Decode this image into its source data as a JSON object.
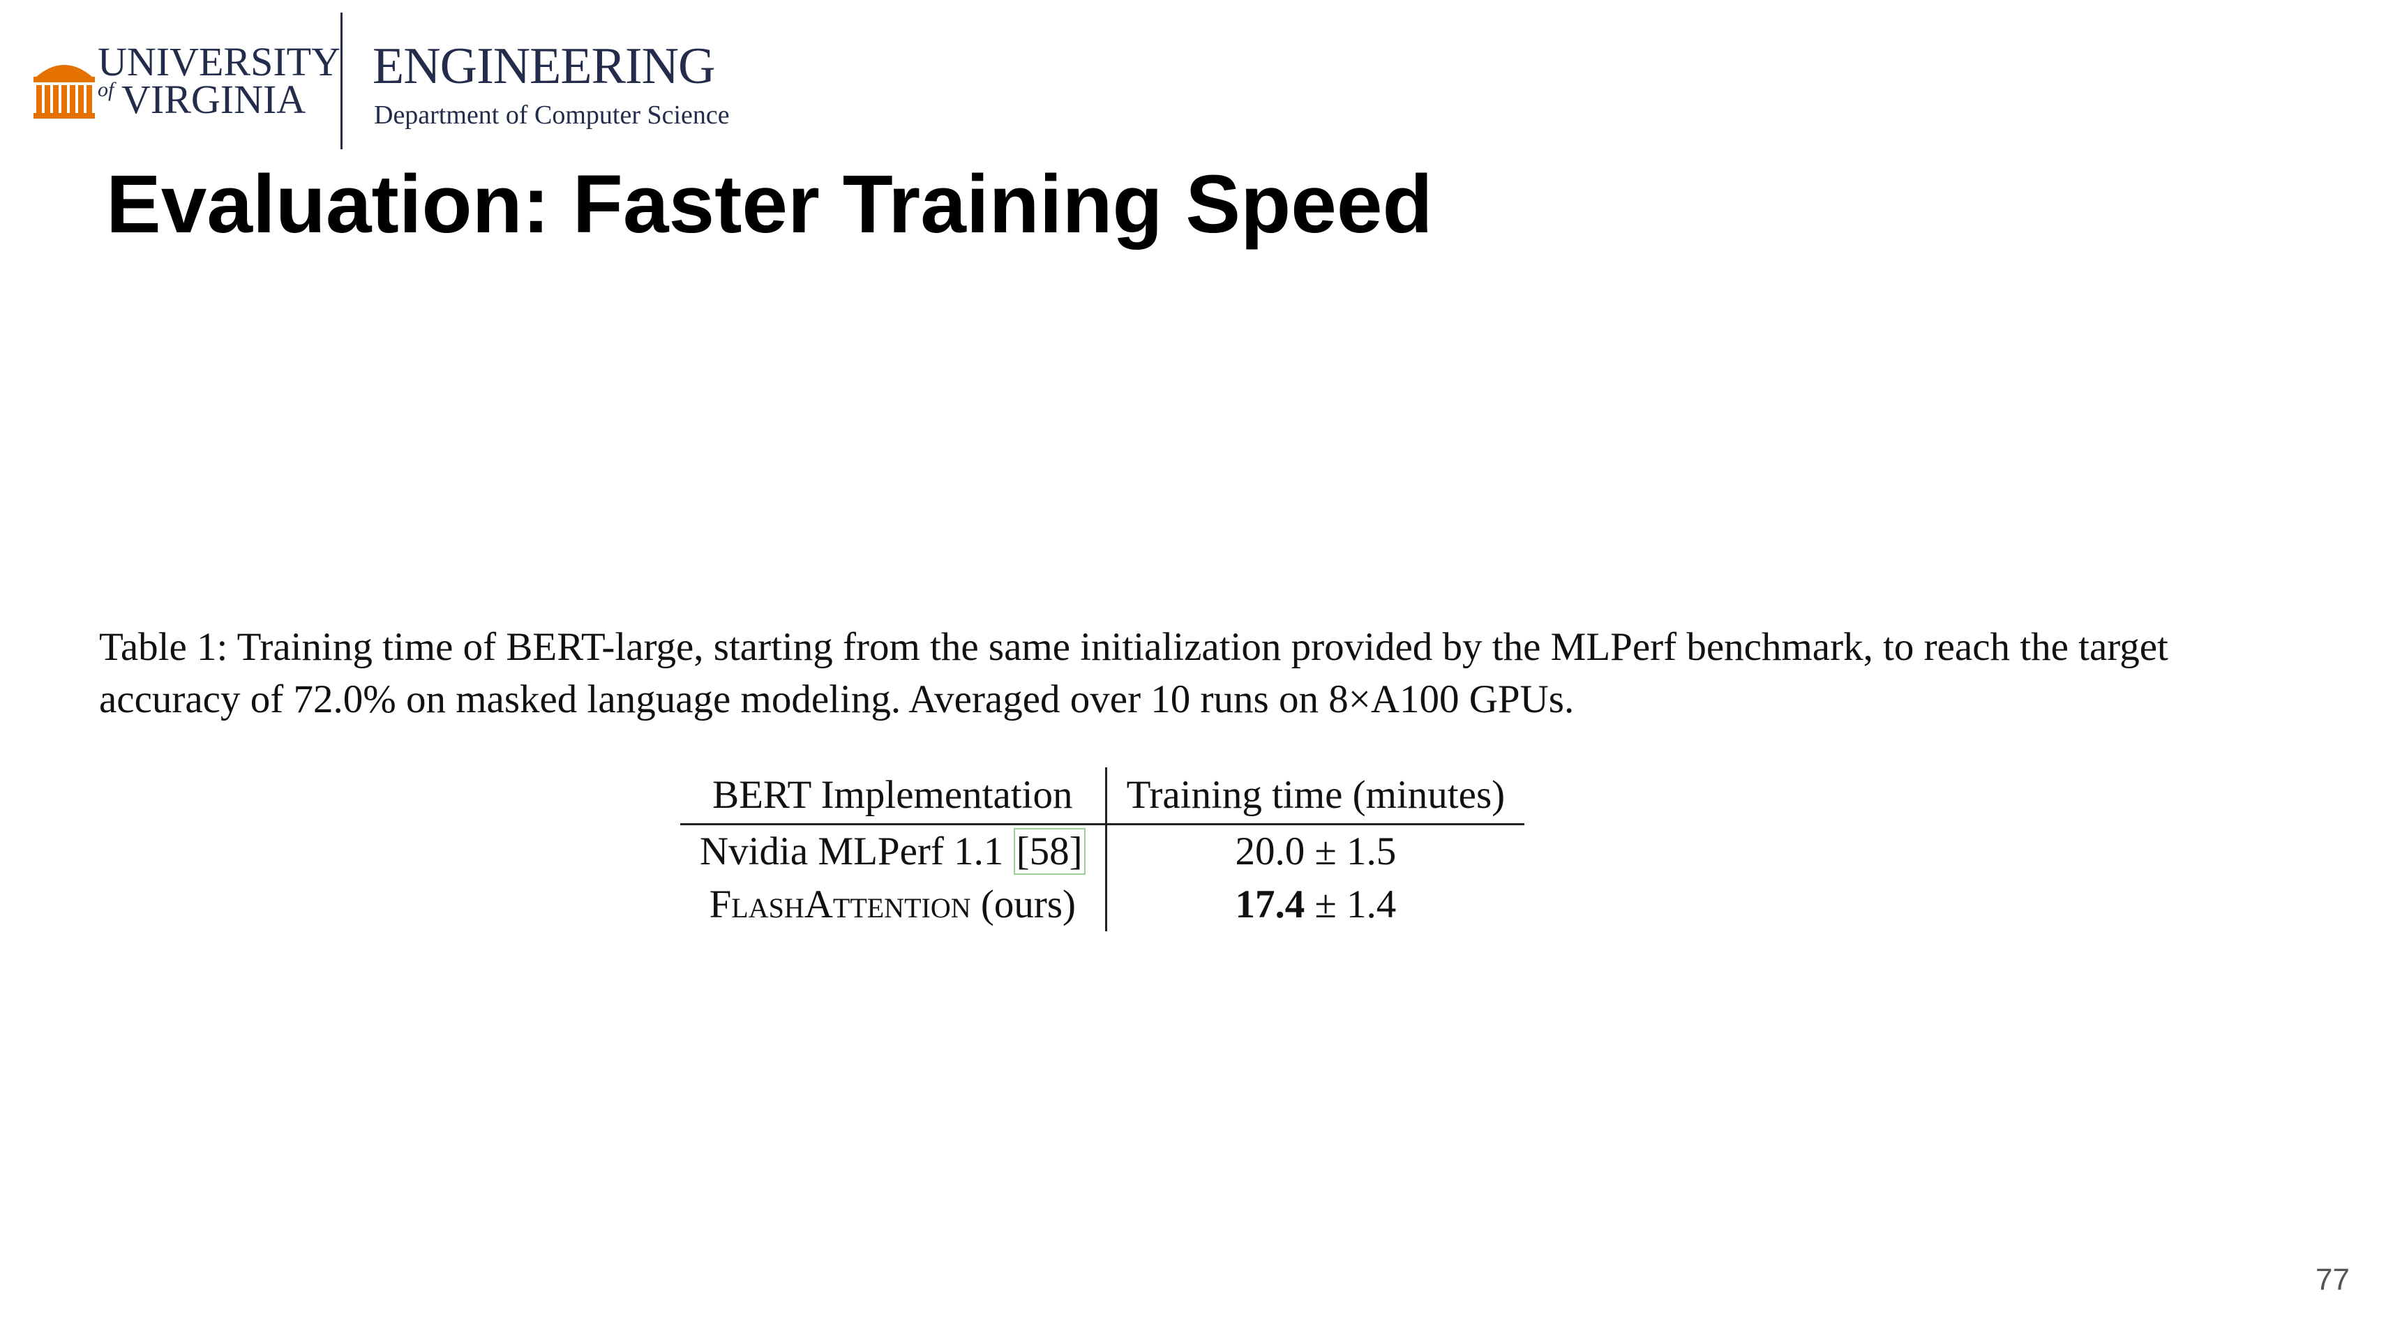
{
  "header": {
    "university_line1": "UNIVERSITY",
    "university_of": "of",
    "university_line2": "VIRGINIA",
    "school": "ENGINEERING",
    "department": "Department of Computer Science",
    "logo_color": "#e57200",
    "brand_color": "#232d4b"
  },
  "slide": {
    "title": "Evaluation: Faster Training Speed",
    "page_number": "77"
  },
  "table": {
    "caption": "Table 1: Training time of BERT-large, starting from the same initialization provided by the MLPerf benchmark, to reach the target accuracy of 72.0% on masked language modeling. Averaged over 10 runs on 8×A100 GPUs.",
    "headers": [
      "BERT Implementation",
      "Training time (minutes)"
    ],
    "rows": [
      {
        "impl": "Nvidia MLPerf 1.1 ",
        "cite": "[58]",
        "time_main": "20.0",
        "time_rest": " ± 1.5"
      },
      {
        "impl_smallcaps": "FlashAttention",
        "impl_suffix": " (ours)",
        "time_main": "17.4",
        "time_rest": " ± 1.4"
      }
    ]
  }
}
